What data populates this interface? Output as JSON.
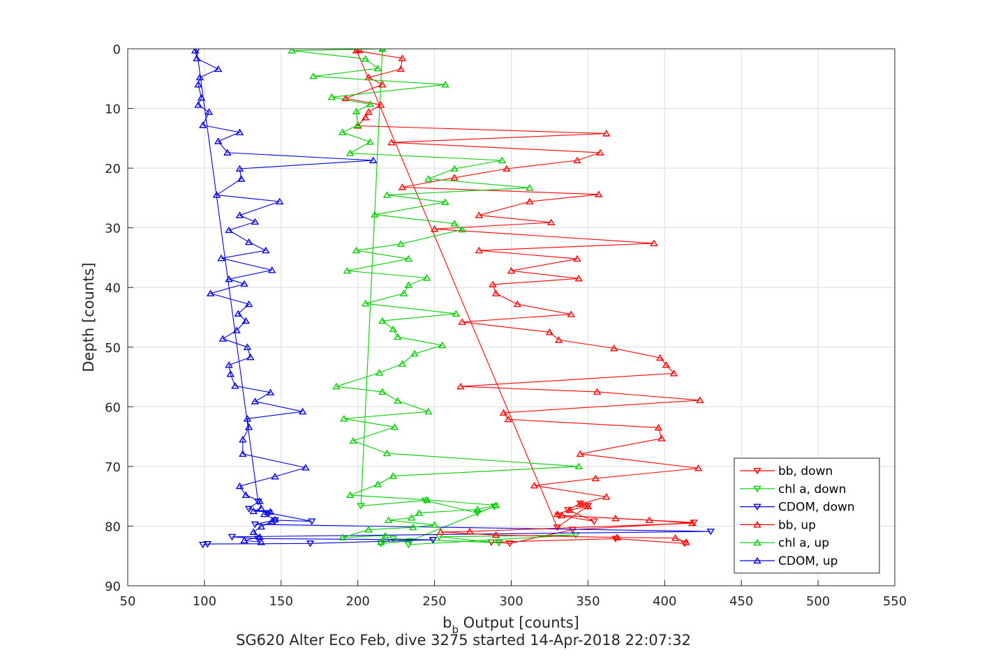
{
  "chart_data": {
    "type": "line",
    "xlabel": "b",
    "xlabel_sub": "b",
    "xlabel_rest": " Output [counts]",
    "ylabel": "Depth [counts]",
    "title": "SG620 Alter Eco Feb, dive 3275 started 14-Apr-2018 22:07:32",
    "xlim": [
      50,
      550
    ],
    "ylim": [
      0,
      90
    ],
    "y_reversed": true,
    "grid": true,
    "legend_position": "lower-right",
    "xticks": [
      "50",
      "100",
      "150",
      "200",
      "250",
      "300",
      "350",
      "400",
      "450",
      "500",
      "550"
    ],
    "yticks": [
      "0",
      "10",
      "20",
      "30",
      "40",
      "50",
      "60",
      "70",
      "80",
      "90"
    ],
    "series": [
      {
        "name": "bb, down",
        "color": "#ff0000",
        "marker": "triangle-down",
        "points": [
          [
            199,
            0.2
          ],
          [
            330,
            80.2
          ],
          [
            350,
            76.6
          ],
          [
            345,
            76.2
          ],
          [
            337,
            77.3
          ],
          [
            354,
            79.2
          ],
          [
            331,
            78.2
          ],
          [
            419,
            79.4
          ],
          [
            340,
            80.6
          ],
          [
            299,
            82.9
          ],
          [
            287,
            82.7
          ],
          [
            368,
            82.1
          ],
          [
            413,
            82.9
          ]
        ]
      },
      {
        "name": "chl a, down",
        "color": "#00cc00",
        "marker": "triangle-down",
        "points": [
          [
            216,
            0.1
          ],
          [
            202,
            76.6
          ],
          [
            244,
            75.7
          ],
          [
            278,
            77.8
          ],
          [
            289,
            76.7
          ],
          [
            234,
            82.5
          ],
          [
            215,
            82.9
          ],
          [
            223,
            82.1
          ],
          [
            292,
            82.8
          ],
          [
            253,
            81.8
          ],
          [
            342,
            81.5
          ],
          [
            233,
            83.1
          ]
        ]
      },
      {
        "name": "CDOM, down",
        "color": "#0000dd",
        "marker": "triangle-down",
        "points": [
          [
            95,
            0.2
          ],
          [
            135,
            75.9
          ],
          [
            129,
            77.1
          ],
          [
            142,
            77.8
          ],
          [
            170,
            79.2
          ],
          [
            146,
            79.0
          ],
          [
            133,
            79.7
          ],
          [
            430,
            80.9
          ],
          [
            118,
            81.8
          ],
          [
            135,
            82.1
          ],
          [
            249,
            82.3
          ],
          [
            169,
            82.9
          ],
          [
            102,
            83.0
          ],
          [
            99,
            83.1
          ]
        ]
      },
      {
        "name": "bb, up",
        "color": "#ff0000",
        "marker": "triangle-up",
        "points": [
          [
            414,
            82.7
          ],
          [
            407,
            82.0
          ],
          [
            369,
            81.9
          ],
          [
            290,
            81.5
          ],
          [
            254,
            81.0
          ],
          [
            273,
            80.9
          ],
          [
            418,
            79.5
          ],
          [
            390,
            79.0
          ],
          [
            368,
            78.7
          ],
          [
            333,
            78.2
          ],
          [
            330,
            78.0
          ],
          [
            338,
            77.3
          ],
          [
            350,
            76.7
          ],
          [
            345,
            76.3
          ],
          [
            362,
            75.1
          ],
          [
            315,
            73.2
          ],
          [
            355,
            72.0
          ],
          [
            422,
            70.3
          ],
          [
            345,
            67.9
          ],
          [
            398,
            65.3
          ],
          [
            396,
            63.5
          ],
          [
            298,
            62.1
          ],
          [
            295,
            61.0
          ],
          [
            423,
            58.9
          ],
          [
            356,
            57.5
          ],
          [
            267,
            56.6
          ],
          [
            406,
            54.4
          ],
          [
            401,
            53.0
          ],
          [
            397,
            51.8
          ],
          [
            367,
            50.2
          ],
          [
            331,
            48.8
          ],
          [
            325,
            47.5
          ],
          [
            268,
            45.8
          ],
          [
            339,
            44.5
          ],
          [
            304,
            42.8
          ],
          [
            290,
            41.0
          ],
          [
            288,
            39.5
          ],
          [
            344,
            38.5
          ],
          [
            300,
            37.2
          ],
          [
            343,
            35.2
          ],
          [
            279,
            33.8
          ],
          [
            393,
            32.6
          ],
          [
            250,
            30.2
          ],
          [
            326,
            29.1
          ],
          [
            279,
            27.9
          ],
          [
            312,
            25.6
          ],
          [
            357,
            24.4
          ],
          [
            229,
            23.2
          ],
          [
            263,
            21.6
          ],
          [
            297,
            20.1
          ],
          [
            343,
            18.7
          ],
          [
            358,
            17.4
          ],
          [
            222,
            15.7
          ],
          [
            362,
            14.2
          ],
          [
            200,
            12.9
          ],
          [
            205,
            11.5
          ],
          [
            207,
            10.6
          ],
          [
            215,
            9.4
          ],
          [
            192,
            8.3
          ],
          [
            216,
            6.0
          ],
          [
            207,
            4.8
          ],
          [
            228,
            3.4
          ],
          [
            229,
            1.6
          ],
          [
            199,
            0.3
          ],
          [
            201,
            0.2
          ]
        ]
      },
      {
        "name": "chl a, up",
        "color": "#00cc00",
        "marker": "triangle-up",
        "points": [
          [
            215,
            82.7
          ],
          [
            218,
            81.6
          ],
          [
            190,
            81.9
          ],
          [
            207,
            80.6
          ],
          [
            236,
            80.2
          ],
          [
            250,
            79.8
          ],
          [
            220,
            79.0
          ],
          [
            235,
            78.6
          ],
          [
            240,
            77.8
          ],
          [
            278,
            77.2
          ],
          [
            290,
            76.5
          ],
          [
            245,
            75.6
          ],
          [
            195,
            74.8
          ],
          [
            213,
            73.0
          ],
          [
            223,
            71.6
          ],
          [
            344,
            70.0
          ],
          [
            219,
            67.8
          ],
          [
            197,
            65.7
          ],
          [
            224,
            63.4
          ],
          [
            191,
            62.0
          ],
          [
            246,
            60.8
          ],
          [
            226,
            59.0
          ],
          [
            216,
            57.5
          ],
          [
            186,
            56.6
          ],
          [
            214,
            54.3
          ],
          [
            229,
            52.8
          ],
          [
            237,
            51.1
          ],
          [
            255,
            49.7
          ],
          [
            226,
            48.3
          ],
          [
            223,
            47.0
          ],
          [
            216,
            45.6
          ],
          [
            264,
            44.4
          ],
          [
            205,
            42.7
          ],
          [
            230,
            41.0
          ],
          [
            233,
            39.6
          ],
          [
            245,
            38.4
          ],
          [
            193,
            37.2
          ],
          [
            233,
            35.2
          ],
          [
            199,
            33.8
          ],
          [
            228,
            32.7
          ],
          [
            268,
            30.3
          ],
          [
            263,
            29.3
          ],
          [
            211,
            27.8
          ],
          [
            257,
            25.7
          ],
          [
            219,
            24.5
          ],
          [
            312,
            23.3
          ],
          [
            246,
            21.8
          ],
          [
            263,
            20.1
          ],
          [
            294,
            18.7
          ],
          [
            195,
            17.5
          ],
          [
            208,
            15.6
          ],
          [
            190,
            14.0
          ],
          [
            200,
            12.8
          ],
          [
            199,
            10.5
          ],
          [
            208,
            9.3
          ],
          [
            183,
            8.1
          ],
          [
            257,
            6.0
          ],
          [
            171,
            4.6
          ],
          [
            213,
            3.3
          ],
          [
            205,
            1.7
          ],
          [
            157,
            0.3
          ],
          [
            216,
            0.0
          ]
        ]
      },
      {
        "name": "CDOM, up",
        "color": "#0000dd",
        "marker": "triangle-up",
        "points": [
          [
            137,
            82.7
          ],
          [
            126,
            82.4
          ],
          [
            136,
            81.8
          ],
          [
            132,
            81.0
          ],
          [
            137,
            80.1
          ],
          [
            144,
            79.2
          ],
          [
            146,
            78.9
          ],
          [
            139,
            78.0
          ],
          [
            143,
            77.6
          ],
          [
            132,
            77.5
          ],
          [
            137,
            77.0
          ],
          [
            136,
            75.8
          ],
          [
            127,
            74.8
          ],
          [
            123,
            73.3
          ],
          [
            146,
            71.7
          ],
          [
            166,
            70.2
          ],
          [
            125,
            67.9
          ],
          [
            125,
            65.5
          ],
          [
            129,
            63.4
          ],
          [
            128,
            62.0
          ],
          [
            164,
            60.8
          ],
          [
            133,
            59.1
          ],
          [
            143,
            57.6
          ],
          [
            120,
            56.5
          ],
          [
            117,
            54.5
          ],
          [
            116,
            53.0
          ],
          [
            130,
            51.7
          ],
          [
            128,
            50.0
          ],
          [
            112,
            48.6
          ],
          [
            121,
            47.2
          ],
          [
            127,
            45.6
          ],
          [
            122,
            44.4
          ],
          [
            129,
            42.8
          ],
          [
            104,
            41.0
          ],
          [
            126,
            39.4
          ],
          [
            116,
            38.6
          ],
          [
            144,
            37.1
          ],
          [
            111,
            35.1
          ],
          [
            140,
            33.8
          ],
          [
            129,
            32.4
          ],
          [
            116,
            30.4
          ],
          [
            133,
            29.0
          ],
          [
            123,
            27.9
          ],
          [
            149,
            25.6
          ],
          [
            108,
            24.5
          ],
          [
            124,
            21.8
          ],
          [
            123,
            20.1
          ],
          [
            210,
            18.7
          ],
          [
            115,
            17.4
          ],
          [
            109,
            15.5
          ],
          [
            123,
            14.0
          ],
          [
            99,
            12.8
          ],
          [
            103,
            10.6
          ],
          [
            96,
            9.4
          ],
          [
            98,
            8.2
          ],
          [
            96,
            6.0
          ],
          [
            97,
            4.8
          ],
          [
            109,
            3.4
          ],
          [
            95,
            1.6
          ],
          [
            94,
            0.3
          ]
        ]
      }
    ]
  }
}
